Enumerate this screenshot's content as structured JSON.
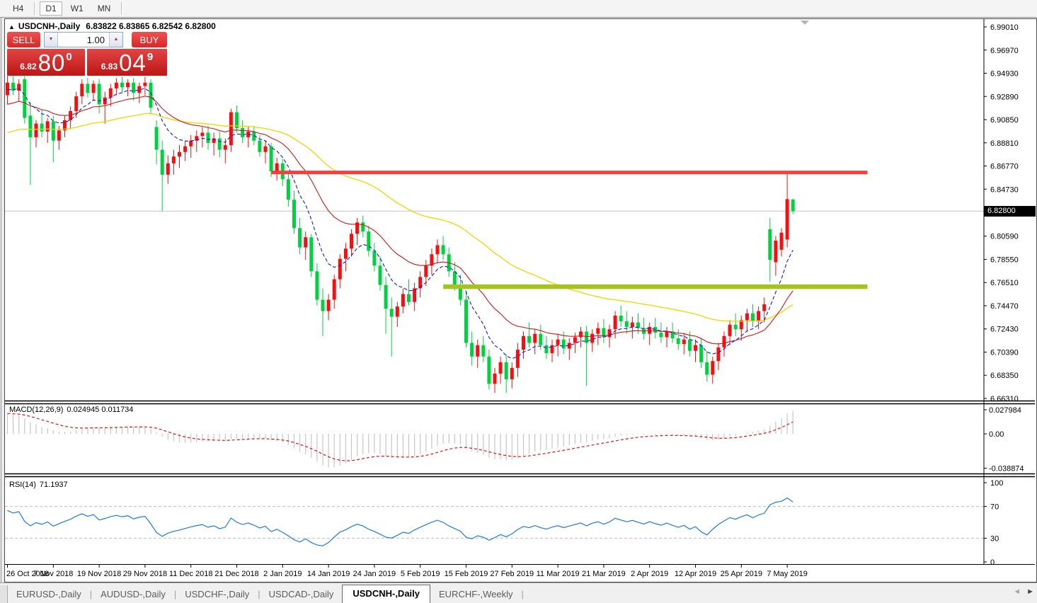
{
  "toolbar": {
    "timeframes": [
      {
        "label": "H4",
        "active": false
      },
      {
        "label": "D1",
        "active": true
      },
      {
        "label": "W1",
        "active": false
      },
      {
        "label": "MN",
        "active": false
      }
    ]
  },
  "chart_header": {
    "collapse_icon": "▲",
    "symbol_title": "USDCNH-,Daily",
    "ohlc": "6.83822 6.83865 6.82542 6.82800"
  },
  "trade_panel": {
    "sell_label": "SELL",
    "buy_label": "BUY",
    "volume": "1.00",
    "spinner_down": "▼",
    "spinner_up": "▲",
    "sell_price_small": "6.82",
    "sell_price_big": "80",
    "sell_price_sup": "0",
    "buy_price_small": "6.83",
    "buy_price_big": "04",
    "buy_price_sup": "9"
  },
  "indicator_labels": {
    "macd": "MACD(12,26,9)",
    "macd_values": "0.024945 0.011734",
    "rsi": "RSI(14)",
    "rsi_value": "71.1937"
  },
  "tabs": {
    "separator": "|",
    "scroll_left": "◄",
    "scroll_right": "►",
    "items": [
      {
        "label": "EURUSD-,Daily",
        "active": false
      },
      {
        "label": "AUDUSD-,Daily",
        "active": false
      },
      {
        "label": "USDCHF-,Daily",
        "active": false
      },
      {
        "label": "USDCAD-,Daily",
        "active": false
      },
      {
        "label": "USDCNH-,Daily",
        "active": true
      },
      {
        "label": "EURCHF-,Weekly",
        "active": false
      }
    ]
  },
  "colors": {
    "bull_candle": "#f80e0e",
    "bear_candle": "#00d13f",
    "ma_fast_blue": "#1717c9",
    "ma_mid_red": "#d01616",
    "ma_slow_yellow": "#ecd800",
    "macd_hist": "#c6c6c6",
    "macd_signal": "#e21212",
    "rsi_line": "#1f7ae0",
    "resistance_line": "#fa3c3c",
    "support_line": "#a6c41f",
    "bid_line": "#c4c4c4",
    "trade_red_light": "#e24444",
    "trade_red_dark": "#bd1616"
  },
  "chart_data": {
    "type": "candlestick",
    "symbol": "USDCNH-",
    "timeframe": "Daily",
    "bid": 6.828,
    "bid_text": "6.82800",
    "label_step": 8,
    "x_labels": [
      "26 Oct 2018",
      "7 Nov 2018",
      "19 Nov 2018",
      "29 Nov 2018",
      "11 Dec 2018",
      "21 Dec 2018",
      "2 Jan 2019",
      "14 Jan 2019",
      "24 Jan 2019",
      "5 Feb 2019",
      "15 Feb 2019",
      "27 Feb 2019",
      "11 Mar 2019",
      "21 Mar 2019",
      "2 Apr 2019",
      "12 Apr 2019",
      "25 Apr 2019",
      "7 May 2019"
    ],
    "price_axis_labels": [
      "6.99010",
      "6.96970",
      "6.94930",
      "6.92890",
      "6.90850",
      "6.88810",
      "6.86770",
      "6.84730",
      "6.80590",
      "6.78550",
      "6.76510",
      "6.74470",
      "6.72430",
      "6.70390",
      "6.68350",
      "6.66310"
    ],
    "macd_axis": [
      {
        "text": "0.027984",
        "value": 0.027984
      },
      {
        "text": "0.00",
        "value": 0
      },
      {
        "text": "-0.038874",
        "value": -0.038874
      }
    ],
    "rsi_axis": [
      {
        "text": "100",
        "value": 100
      },
      {
        "text": "70",
        "value": 70
      },
      {
        "text": "30",
        "value": 30
      },
      {
        "text": "0",
        "value": 0
      }
    ],
    "indicators": {
      "macd": {
        "fast": 12,
        "slow": 26,
        "signal": 9,
        "current": 0.024945,
        "current_signal": 0.011734
      },
      "rsi": {
        "period": 14,
        "current": 71.1937,
        "levels": [
          70,
          30
        ]
      }
    },
    "overlays": {
      "resistance": {
        "price": 6.862,
        "start_index": 46,
        "end_index": 150
      },
      "support": {
        "price": 6.7615,
        "start_index": 76,
        "end_index": 150
      }
    },
    "candles": [
      [
        6.93,
        6.947,
        6.922,
        6.941
      ],
      [
        6.941,
        6.948,
        6.93,
        6.934
      ],
      [
        6.934,
        6.944,
        6.925,
        6.94
      ],
      [
        6.944,
        6.948,
        6.905,
        6.91
      ],
      [
        6.912,
        6.924,
        6.851,
        6.893
      ],
      [
        6.893,
        6.908,
        6.884,
        6.905
      ],
      [
        6.905,
        6.917,
        6.893,
        6.898
      ],
      [
        6.898,
        6.91,
        6.888,
        6.907
      ],
      [
        6.907,
        6.912,
        6.871,
        6.89
      ],
      [
        6.89,
        6.903,
        6.882,
        6.899
      ],
      [
        6.899,
        6.912,
        6.893,
        6.908
      ],
      [
        6.908,
        6.92,
        6.9,
        6.916
      ],
      [
        6.916,
        6.933,
        6.91,
        6.929
      ],
      [
        6.929,
        6.944,
        6.922,
        6.94
      ],
      [
        6.94,
        6.945,
        6.928,
        6.932
      ],
      [
        6.932,
        6.943,
        6.925,
        6.94
      ],
      [
        6.94,
        6.944,
        6.914,
        6.922
      ],
      [
        6.922,
        6.933,
        6.905,
        6.928
      ],
      [
        6.928,
        6.94,
        6.92,
        6.936
      ],
      [
        6.936,
        6.945,
        6.93,
        6.941
      ],
      [
        6.941,
        6.946,
        6.932,
        6.937
      ],
      [
        6.937,
        6.944,
        6.929,
        6.941
      ],
      [
        6.941,
        6.945,
        6.925,
        6.932
      ],
      [
        6.932,
        6.941,
        6.923,
        6.938
      ],
      [
        6.938,
        6.946,
        6.93,
        6.941
      ],
      [
        6.941,
        6.944,
        6.913,
        6.919
      ],
      [
        6.902,
        6.908,
        6.869,
        6.882
      ],
      [
        6.882,
        6.89,
        6.828,
        6.86
      ],
      [
        6.86,
        6.877,
        6.852,
        6.87
      ],
      [
        6.87,
        6.882,
        6.86,
        6.876
      ],
      [
        6.876,
        6.886,
        6.866,
        6.88
      ],
      [
        6.88,
        6.89,
        6.872,
        6.885
      ],
      [
        6.885,
        6.895,
        6.875,
        6.89
      ],
      [
        6.89,
        6.899,
        6.88,
        6.894
      ],
      [
        6.894,
        6.902,
        6.884,
        6.897
      ],
      [
        6.897,
        6.903,
        6.882,
        6.888
      ],
      [
        6.888,
        6.897,
        6.877,
        6.892
      ],
      [
        6.892,
        6.898,
        6.875,
        6.882
      ],
      [
        6.882,
        6.892,
        6.87,
        6.886
      ],
      [
        6.886,
        6.918,
        6.88,
        6.915
      ],
      [
        6.915,
        6.921,
        6.897,
        6.901
      ],
      [
        6.901,
        6.908,
        6.888,
        6.893
      ],
      [
        6.893,
        6.902,
        6.884,
        6.898
      ],
      [
        6.898,
        6.903,
        6.886,
        6.89
      ],
      [
        6.89,
        6.895,
        6.876,
        6.88
      ],
      [
        6.88,
        6.89,
        6.87,
        6.885
      ],
      [
        6.885,
        6.888,
        6.858,
        6.863
      ],
      [
        6.863,
        6.875,
        6.855,
        6.87
      ],
      [
        6.87,
        6.874,
        6.85,
        6.856
      ],
      [
        6.856,
        6.862,
        6.832,
        6.838
      ],
      [
        6.838,
        6.846,
        6.808,
        6.813
      ],
      [
        6.813,
        6.822,
        6.79,
        6.796
      ],
      [
        6.796,
        6.81,
        6.785,
        6.805
      ],
      [
        6.805,
        6.808,
        6.77,
        6.775
      ],
      [
        6.775,
        6.782,
        6.745,
        6.75
      ],
      [
        6.75,
        6.76,
        6.718,
        6.74
      ],
      [
        6.74,
        6.755,
        6.732,
        6.75
      ],
      [
        6.75,
        6.772,
        6.742,
        6.768
      ],
      [
        6.768,
        6.79,
        6.76,
        6.786
      ],
      [
        6.786,
        6.8,
        6.775,
        6.795
      ],
      [
        6.795,
        6.812,
        6.788,
        6.808
      ],
      [
        6.808,
        6.822,
        6.798,
        6.818
      ],
      [
        6.818,
        6.824,
        6.805,
        6.81
      ],
      [
        6.81,
        6.815,
        6.788,
        6.793
      ],
      [
        6.793,
        6.8,
        6.775,
        6.78
      ],
      [
        6.78,
        6.788,
        6.758,
        6.763
      ],
      [
        6.763,
        6.77,
        6.72,
        6.742
      ],
      [
        6.742,
        6.752,
        6.7,
        6.735
      ],
      [
        6.735,
        6.748,
        6.726,
        6.744
      ],
      [
        6.744,
        6.76,
        6.738,
        6.755
      ],
      [
        6.755,
        6.768,
        6.745,
        6.748
      ],
      [
        6.748,
        6.765,
        6.74,
        6.76
      ],
      [
        6.76,
        6.775,
        6.752,
        6.77
      ],
      [
        6.77,
        6.785,
        6.762,
        6.78
      ],
      [
        6.78,
        6.795,
        6.772,
        6.79
      ],
      [
        6.79,
        6.803,
        6.782,
        6.798
      ],
      [
        6.798,
        6.806,
        6.785,
        6.79
      ],
      [
        6.79,
        6.796,
        6.77,
        6.775
      ],
      [
        6.775,
        6.783,
        6.758,
        6.763
      ],
      [
        6.763,
        6.772,
        6.745,
        6.75
      ],
      [
        6.75,
        6.758,
        6.708,
        6.712
      ],
      [
        6.712,
        6.722,
        6.692,
        6.7
      ],
      [
        6.7,
        6.715,
        6.69,
        6.71
      ],
      [
        6.71,
        6.718,
        6.695,
        6.7
      ],
      [
        6.7,
        6.706,
        6.671,
        6.676
      ],
      [
        6.676,
        6.69,
        6.668,
        6.685
      ],
      [
        6.685,
        6.7,
        6.676,
        6.695
      ],
      [
        6.695,
        6.702,
        6.668,
        6.68
      ],
      [
        6.68,
        6.695,
        6.672,
        6.69
      ],
      [
        6.69,
        6.712,
        6.682,
        6.706
      ],
      [
        6.706,
        6.722,
        6.698,
        6.718
      ],
      [
        6.718,
        6.73,
        6.708,
        6.712
      ],
      [
        6.712,
        6.724,
        6.702,
        6.72
      ],
      [
        6.72,
        6.728,
        6.706,
        6.71
      ],
      [
        6.71,
        6.718,
        6.698,
        6.703
      ],
      [
        6.703,
        6.715,
        6.695,
        6.71
      ],
      [
        6.71,
        6.72,
        6.7,
        6.715
      ],
      [
        6.715,
        6.722,
        6.702,
        6.707
      ],
      [
        6.707,
        6.716,
        6.697,
        6.712
      ],
      [
        6.712,
        6.721,
        6.703,
        6.717
      ],
      [
        6.717,
        6.726,
        6.708,
        6.722
      ],
      [
        6.722,
        6.727,
        6.674,
        6.712
      ],
      [
        6.712,
        6.724,
        6.704,
        6.72
      ],
      [
        6.72,
        6.73,
        6.71,
        6.725
      ],
      [
        6.725,
        6.733,
        6.712,
        6.717
      ],
      [
        6.717,
        6.728,
        6.708,
        6.724
      ],
      [
        6.724,
        6.74,
        6.716,
        6.736
      ],
      [
        6.736,
        6.745,
        6.726,
        6.731
      ],
      [
        6.731,
        6.74,
        6.72,
        6.726
      ],
      [
        6.726,
        6.735,
        6.716,
        6.73
      ],
      [
        6.73,
        6.738,
        6.72,
        6.725
      ],
      [
        6.725,
        6.734,
        6.715,
        6.72
      ],
      [
        6.72,
        6.73,
        6.71,
        6.726
      ],
      [
        6.726,
        6.734,
        6.716,
        6.721
      ],
      [
        6.721,
        6.73,
        6.712,
        6.717
      ],
      [
        6.717,
        6.726,
        6.708,
        6.722
      ],
      [
        6.722,
        6.73,
        6.712,
        6.716
      ],
      [
        6.716,
        6.724,
        6.706,
        6.711
      ],
      [
        6.711,
        6.72,
        6.702,
        6.715
      ],
      [
        6.715,
        6.722,
        6.7,
        6.705
      ],
      [
        6.705,
        6.715,
        6.695,
        6.71
      ],
      [
        6.71,
        6.716,
        6.69,
        6.695
      ],
      [
        6.695,
        6.705,
        6.678,
        6.684
      ],
      [
        6.684,
        6.7,
        6.676,
        6.696
      ],
      [
        6.696,
        6.712,
        6.688,
        6.708
      ],
      [
        6.708,
        6.722,
        6.7,
        6.718
      ],
      [
        6.718,
        6.732,
        6.71,
        6.728
      ],
      [
        6.728,
        6.738,
        6.718,
        6.724
      ],
      [
        6.724,
        6.736,
        6.714,
        6.732
      ],
      [
        6.732,
        6.742,
        6.722,
        6.738
      ],
      [
        6.738,
        6.746,
        6.726,
        6.731
      ],
      [
        6.731,
        6.744,
        6.724,
        6.74
      ],
      [
        6.74,
        6.752,
        6.73,
        6.746
      ],
      [
        6.812,
        6.822,
        6.766,
        6.785
      ],
      [
        6.783,
        6.806,
        6.771,
        6.802
      ],
      [
        6.794,
        6.813,
        6.788,
        6.809
      ],
      [
        6.803,
        6.8625,
        6.796,
        6.8385
      ],
      [
        6.83822,
        6.83865,
        6.82542,
        6.828
      ]
    ]
  }
}
